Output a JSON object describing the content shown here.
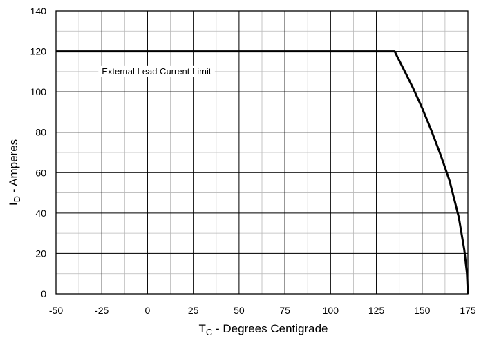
{
  "chart_data": {
    "type": "line",
    "title": "",
    "xlabel": {
      "main": "T",
      "sub": "C",
      "rest": " - Degrees Centigrade"
    },
    "ylabel": {
      "main": "I",
      "sub": "D",
      "rest": " - Amperes"
    },
    "xlim": [
      -50,
      175
    ],
    "ylim": [
      0,
      140
    ],
    "x_ticks": [
      -50,
      -25,
      0,
      25,
      50,
      75,
      100,
      125,
      150,
      175
    ],
    "y_ticks": [
      0,
      20,
      40,
      60,
      80,
      100,
      120,
      140
    ],
    "x_minor_step": 12.5,
    "y_minor_step": 10,
    "grid": true,
    "annotation": {
      "text": "External Lead Current Limit",
      "at": [
        -25,
        110
      ]
    },
    "series": [
      {
        "color": "#000000",
        "points": [
          [
            -50,
            120
          ],
          [
            135,
            120
          ],
          [
            140,
            111
          ],
          [
            145,
            102
          ],
          [
            150,
            92
          ],
          [
            155,
            81
          ],
          [
            160,
            69
          ],
          [
            165,
            56
          ],
          [
            170,
            38
          ],
          [
            173,
            22
          ],
          [
            174.5,
            10
          ],
          [
            175,
            0
          ]
        ]
      }
    ]
  }
}
